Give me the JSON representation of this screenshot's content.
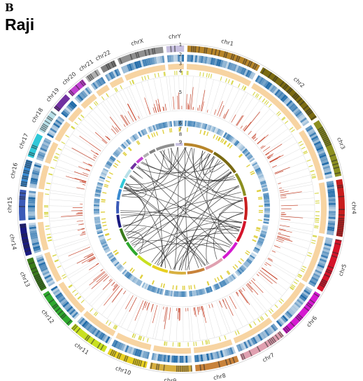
{
  "header": {
    "letter": "B",
    "title": "Raji"
  },
  "chromosomes": [
    {
      "name": "chr1",
      "len": 249,
      "color": "#b8862a"
    },
    {
      "name": "chr2",
      "len": 243,
      "color": "#7a6a12"
    },
    {
      "name": "chr3",
      "len": 198,
      "color": "#8c8f20"
    },
    {
      "name": "chr4",
      "len": 191,
      "color": "#c81e1e"
    },
    {
      "name": "chr5",
      "len": 181,
      "color": "#d4142a"
    },
    {
      "name": "chr6",
      "len": 171,
      "color": "#d41ad0"
    },
    {
      "name": "chr7",
      "len": 159,
      "color": "#e0a0b0"
    },
    {
      "name": "chr8",
      "len": 146,
      "color": "#c8823a"
    },
    {
      "name": "chr9",
      "len": 141,
      "color": "#d8b040"
    },
    {
      "name": "chr10",
      "len": 136,
      "color": "#e8d020"
    },
    {
      "name": "chr11",
      "len": 135,
      "color": "#c8e020"
    },
    {
      "name": "chr12",
      "len": 134,
      "color": "#2ea82e"
    },
    {
      "name": "chr13",
      "len": 115,
      "color": "#3a7a1a"
    },
    {
      "name": "chr14",
      "len": 107,
      "color": "#1a1a80"
    },
    {
      "name": "chr15",
      "len": 102,
      "color": "#3a5ab8"
    },
    {
      "name": "chr16",
      "len": 90,
      "color": "#3a8ad0"
    },
    {
      "name": "chr17",
      "len": 81,
      "color": "#30c8d8"
    },
    {
      "name": "chr18",
      "len": 78,
      "color": "#b8e0e8"
    },
    {
      "name": "chr19",
      "len": 59,
      "color": "#7030a0"
    },
    {
      "name": "chr20",
      "len": 63,
      "color": "#c040d0"
    },
    {
      "name": "chr21",
      "len": 48,
      "color": "#b0b0b0"
    },
    {
      "name": "chr22",
      "len": 51,
      "color": "#808080"
    },
    {
      "name": "chrX",
      "len": 155,
      "color": "#909090"
    },
    {
      "name": "chrY",
      "len": 59,
      "color": "#c8c0e0"
    }
  ],
  "tracks": [
    {
      "label": "1",
      "kind": "ideogram"
    },
    {
      "label": "2",
      "kind": "heatmap",
      "color": "#2a7ab8"
    },
    {
      "label": "3",
      "kind": "band",
      "color": "#f8d8a8"
    },
    {
      "label": "4",
      "kind": "ticks",
      "color": "#e0e060"
    },
    {
      "label": "5",
      "kind": "bars",
      "color": "#c84830"
    },
    {
      "label": "6",
      "kind": "heatmap",
      "color": "#2a7ab8"
    },
    {
      "label": "7",
      "kind": "ticks",
      "color": "#e0d040"
    },
    {
      "label": "8",
      "kind": "ideogram"
    },
    {
      "label": "9",
      "kind": "links",
      "color": "#303030"
    }
  ],
  "colors": {
    "ideogram_dark": "#333333",
    "bar": "#c84830",
    "link": "#2a2a2a",
    "grid": "#d8d8d8"
  }
}
